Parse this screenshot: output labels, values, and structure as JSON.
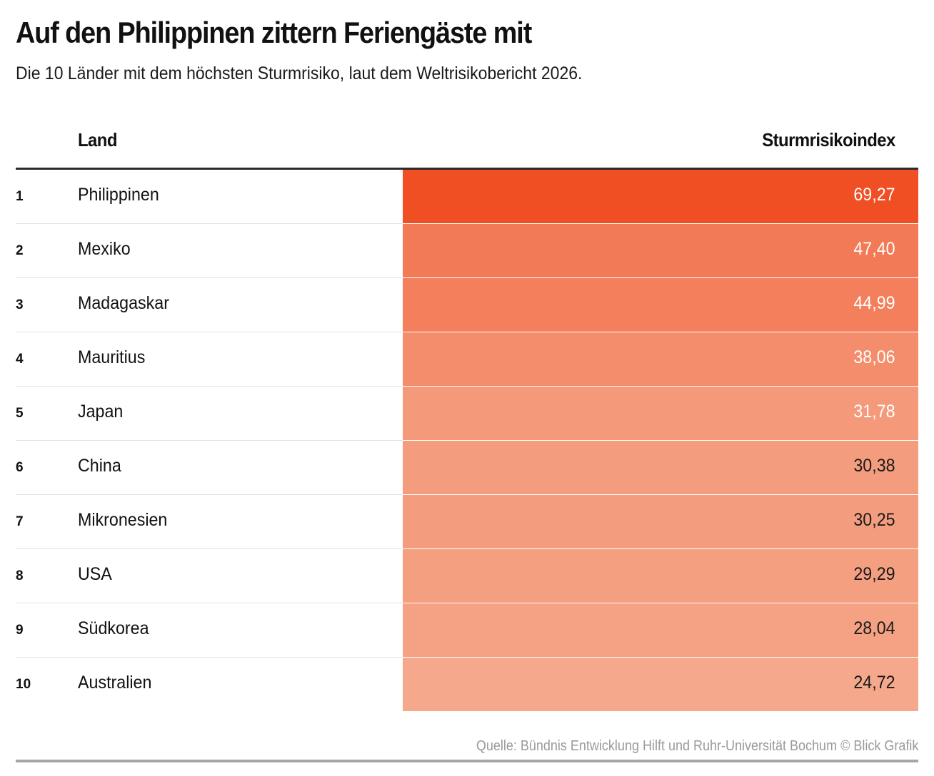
{
  "header": {
    "title": "Auf den Philippinen zittern Feriengäste mit",
    "subtitle": "Die 10 Länder mit dem höchsten Sturmrisiko, laut dem Weltrisikobericht 2026."
  },
  "table": {
    "column_country": "Land",
    "column_value": "Sturmrisikoindex"
  },
  "colors": {
    "scale_max": "#f04e23",
    "scale_min": "#f5a88b",
    "text_dark": "#1a1a1a",
    "text_light": "#ffffff",
    "source_text": "#9a9a9a"
  },
  "chart_data": {
    "type": "table",
    "title": "Auf den Philippinen zittern Feriengäste mit",
    "subtitle": "Die 10 Länder mit dem höchsten Sturmrisiko, laut dem Weltrisikobericht 2026.",
    "columns": [
      "",
      "Land",
      "Sturmrisikoindex"
    ],
    "rows": [
      {
        "rank": "1",
        "country": "Philippinen",
        "value": 69.27,
        "label": "69,27"
      },
      {
        "rank": "2",
        "country": "Mexiko",
        "value": 47.4,
        "label": "47,40"
      },
      {
        "rank": "3",
        "country": "Madagaskar",
        "value": 44.99,
        "label": "44,99"
      },
      {
        "rank": "4",
        "country": "Mauritius",
        "value": 38.06,
        "label": "38,06"
      },
      {
        "rank": "5",
        "country": "Japan",
        "value": 31.78,
        "label": "31,78"
      },
      {
        "rank": "6",
        "country": "China",
        "value": 30.38,
        "label": "30,38"
      },
      {
        "rank": "7",
        "country": "Mikronesien",
        "value": 30.25,
        "label": "30,25"
      },
      {
        "rank": "8",
        "country": "USA",
        "value": 29.29,
        "label": "29,29"
      },
      {
        "rank": "9",
        "country": "Südkorea",
        "value": 28.04,
        "label": "28,04"
      },
      {
        "rank": "10",
        "country": "Australien",
        "value": 24.72,
        "label": "24,72"
      }
    ]
  },
  "footer": {
    "source": "Quelle: Bündnis Entwicklung Hilft und Ruhr-Universität Bochum © Blick Grafik"
  }
}
